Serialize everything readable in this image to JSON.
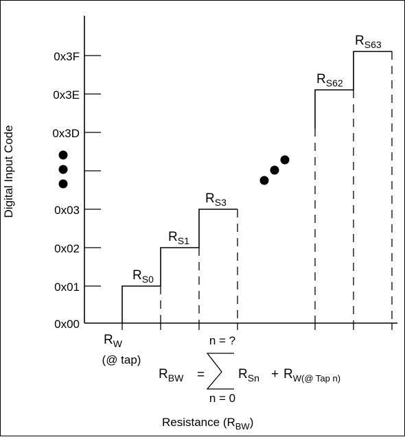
{
  "y_axis": {
    "label": "Digital Input Code",
    "ticks": [
      "0x00",
      "0x01",
      "0x02",
      "0x03",
      "0x3D",
      "0x3E",
      "0x3F"
    ]
  },
  "x_axis": {
    "label_main": "Resistance (R",
    "label_sub": "BW",
    "label_close": ")"
  },
  "steps": [
    {
      "main": "R",
      "sub": "S0"
    },
    {
      "main": "R",
      "sub": "S1"
    },
    {
      "main": "R",
      "sub": "S3"
    },
    {
      "main": "R",
      "sub": "S62"
    },
    {
      "main": "R",
      "sub": "S63"
    }
  ],
  "rw": {
    "main": "R",
    "sub": "W",
    "note": "(@ tap)"
  },
  "formula": {
    "lhs_main": "R",
    "lhs_sub": "BW",
    "equals": "=",
    "sum_top": "n = ?",
    "sum_bottom": "n = 0",
    "term1_main": "R",
    "term1_sub": "Sn",
    "plus": "+",
    "term2_main": "R",
    "term2_sub": "W(@ Tap n)"
  },
  "ellipsis": "●"
}
